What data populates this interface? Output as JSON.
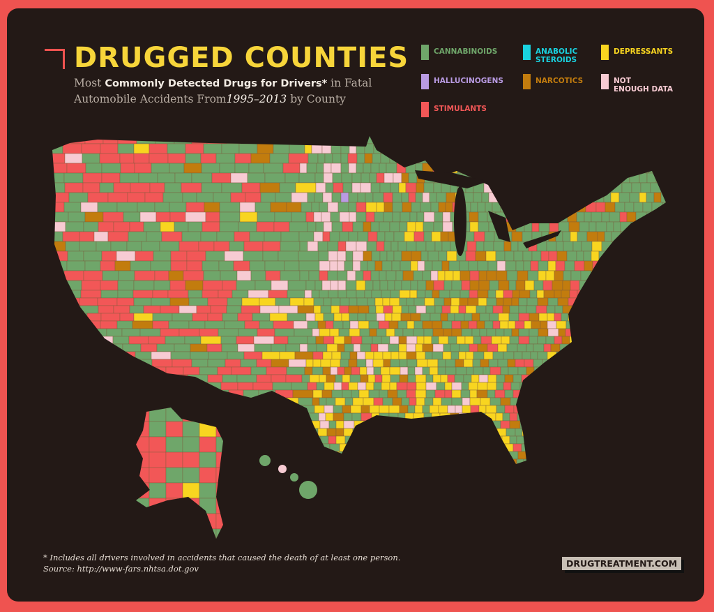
{
  "header": {
    "title": "DRUGGED COUNTIES",
    "subtitle": [
      "Most ",
      "Commonly Detected Drugs",
      " for Drivers*",
      " in Fatal Automobile Accidents From",
      "1995–2013",
      " by County"
    ]
  },
  "legend": [
    {
      "label": "CANNABINOIDS",
      "color": "#6fa66a"
    },
    {
      "label": "ANABOLIC\nSTEROIDS",
      "color": "#19d2e0"
    },
    {
      "label": "DEPRESSANTS",
      "color": "#f8d520"
    },
    {
      "label": "HALLUCINOGENS",
      "color": "#b99be3"
    },
    {
      "label": "NARCOTICS",
      "color": "#c27c0e"
    },
    {
      "label": "NOT\nENOUGH DATA",
      "color": "#f7cbd3"
    },
    {
      "label": "STIMULANTS",
      "color": "#f25757"
    }
  ],
  "footnote": "* Includes all drivers involved in accidents that caused the death of at least one person.",
  "source": "Source: http://www-fars.nhtsa.dot.gov",
  "brand": "DRUGTREATMENT.COM"
}
